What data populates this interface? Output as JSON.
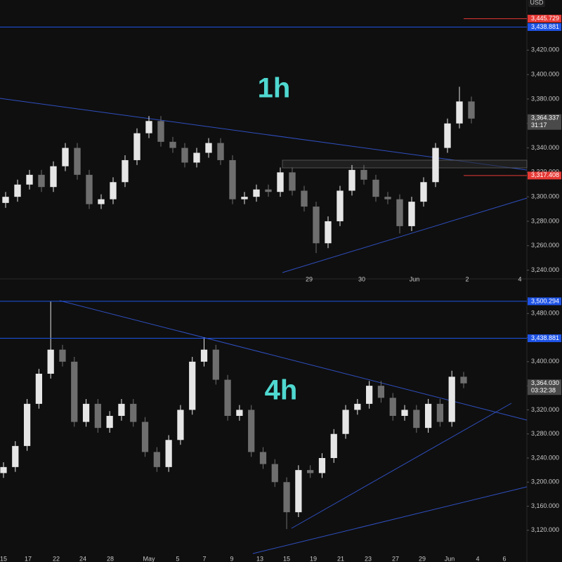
{
  "currency": "USD",
  "chart_data": [
    {
      "type": "candlestick",
      "annotation": "1h",
      "up_color": "#e6e6e6",
      "down_color": "#6e6e6e",
      "ylim": [
        3234,
        3461
      ],
      "yticks": [
        {
          "value": 3240,
          "label": "3,240.000"
        },
        {
          "value": 3260,
          "label": "3,260.000"
        },
        {
          "value": 3280,
          "label": "3,280.000"
        },
        {
          "value": 3300,
          "label": "3,300.000"
        },
        {
          "value": 3320,
          "label": "3,320.000"
        },
        {
          "value": 3340,
          "label": "3,340.000"
        },
        {
          "value": 3360,
          "label": "3,360.000"
        },
        {
          "value": 3380,
          "label": "3,380.000"
        },
        {
          "value": 3400,
          "label": "3,400.000"
        },
        {
          "value": 3420,
          "label": "3,420.000"
        }
      ],
      "categories": [
        "29",
        "30",
        "Jun",
        "2",
        "4"
      ],
      "open": [
        3295,
        3300,
        3310,
        3318,
        3308,
        3325,
        3340,
        3318,
        3294,
        3298,
        3312,
        3330,
        3352,
        3362,
        3345,
        3340,
        3328,
        3336,
        3344,
        3330,
        3298,
        3300,
        3306,
        3304,
        3320,
        3305,
        3292,
        3262,
        3280,
        3305,
        3322,
        3314,
        3300,
        3298,
        3276,
        3296,
        3312,
        3340,
        3360,
        3378
      ],
      "high": [
        3304,
        3314,
        3322,
        3322,
        3329,
        3344,
        3344,
        3322,
        3302,
        3316,
        3334,
        3356,
        3366,
        3366,
        3349,
        3344,
        3340,
        3348,
        3348,
        3334,
        3304,
        3310,
        3310,
        3324,
        3324,
        3309,
        3296,
        3284,
        3309,
        3326,
        3326,
        3318,
        3304,
        3302,
        3300,
        3316,
        3344,
        3364,
        3390,
        3382
      ],
      "low": [
        3291,
        3296,
        3306,
        3304,
        3304,
        3321,
        3314,
        3290,
        3290,
        3294,
        3308,
        3326,
        3348,
        3341,
        3336,
        3324,
        3324,
        3332,
        3326,
        3294,
        3294,
        3296,
        3300,
        3300,
        3301,
        3288,
        3254,
        3258,
        3276,
        3301,
        3310,
        3296,
        3294,
        3270,
        3272,
        3292,
        3308,
        3336,
        3356,
        3360
      ],
      "close": [
        3300,
        3310,
        3318,
        3308,
        3325,
        3340,
        3318,
        3294,
        3298,
        3312,
        3330,
        3352,
        3362,
        3345,
        3340,
        3328,
        3336,
        3344,
        3330,
        3298,
        3300,
        3306,
        3304,
        3320,
        3305,
        3292,
        3262,
        3280,
        3305,
        3322,
        3314,
        3300,
        3298,
        3276,
        3296,
        3312,
        3340,
        3360,
        3378,
        3364
      ],
      "price_tags": [
        {
          "value": 3445.729,
          "label": "3,445.729",
          "color": "#e53935",
          "line": false
        },
        {
          "value": 3438.881,
          "label": "3,438.881",
          "color": "#1e53e5",
          "line": true
        },
        {
          "value": 3364.337,
          "label": "3,364.337",
          "color": "#4a4a4a",
          "line": false,
          "countdown": "31:17"
        },
        {
          "value": 3317.408,
          "label": "3,317.408",
          "color": "#e53935",
          "line": false
        }
      ]
    },
    {
      "type": "candlestick",
      "annotation": "4h",
      "up_color": "#e6e6e6",
      "down_color": "#6e6e6e",
      "ylim": [
        3079,
        3534
      ],
      "yticks": [
        {
          "value": 3120,
          "label": "3,120.000"
        },
        {
          "value": 3160,
          "label": "3,160.000"
        },
        {
          "value": 3200,
          "label": "3,200.000"
        },
        {
          "value": 3240,
          "label": "3,240.000"
        },
        {
          "value": 3280,
          "label": "3,280.000"
        },
        {
          "value": 3320,
          "label": "3,320.000"
        },
        {
          "value": 3360,
          "label": "3,360.000"
        },
        {
          "value": 3400,
          "label": "3,400.000"
        },
        {
          "value": 3440,
          "label": "3,440.000"
        },
        {
          "value": 3480,
          "label": "3,480.000"
        }
      ],
      "categories": [
        "15",
        "17",
        "22",
        "24",
        "28",
        "May",
        "5",
        "7",
        "9",
        "13",
        "15",
        "19",
        "21",
        "23",
        "27",
        "29",
        "Jun",
        "4",
        "6"
      ],
      "open": [
        3215,
        3225,
        3260,
        3330,
        3380,
        3420,
        3400,
        3300,
        3330,
        3290,
        3310,
        3330,
        3300,
        3250,
        3225,
        3270,
        3320,
        3400,
        3420,
        3370,
        3310,
        3320,
        3250,
        3230,
        3200,
        3150,
        3220,
        3215,
        3240,
        3280,
        3320,
        3330,
        3360,
        3340,
        3310,
        3320,
        3290,
        3330,
        3300,
        3375
      ],
      "high": [
        3233,
        3268,
        3338,
        3388,
        3500,
        3428,
        3408,
        3338,
        3338,
        3318,
        3338,
        3338,
        3308,
        3258,
        3278,
        3328,
        3408,
        3440,
        3428,
        3378,
        3328,
        3328,
        3258,
        3238,
        3208,
        3228,
        3228,
        3248,
        3288,
        3328,
        3338,
        3368,
        3368,
        3348,
        3328,
        3328,
        3338,
        3338,
        3385,
        3383
      ],
      "low": [
        3207,
        3217,
        3252,
        3322,
        3372,
        3392,
        3292,
        3292,
        3282,
        3282,
        3302,
        3292,
        3242,
        3217,
        3217,
        3262,
        3312,
        3392,
        3362,
        3302,
        3302,
        3242,
        3222,
        3192,
        3122,
        3142,
        3207,
        3207,
        3232,
        3272,
        3312,
        3322,
        3332,
        3302,
        3302,
        3282,
        3282,
        3292,
        3292,
        3356
      ],
      "close": [
        3225,
        3260,
        3330,
        3380,
        3420,
        3400,
        3300,
        3330,
        3290,
        3310,
        3330,
        3300,
        3250,
        3225,
        3270,
        3320,
        3400,
        3420,
        3370,
        3310,
        3320,
        3250,
        3230,
        3200,
        3150,
        3220,
        3215,
        3240,
        3280,
        3320,
        3330,
        3360,
        3340,
        3310,
        3320,
        3290,
        3330,
        3300,
        3375,
        3364
      ],
      "price_tags": [
        {
          "value": 3500.294,
          "label": "3,500.294",
          "color": "#1e53e5",
          "line": true
        },
        {
          "value": 3438.881,
          "label": "3,438.881",
          "color": "#1e53e5",
          "line": true
        },
        {
          "value": 3364.03,
          "label": "3,364.030",
          "color": "#4a4a4a",
          "line": false,
          "countdown": "03:32:38"
        }
      ]
    }
  ]
}
